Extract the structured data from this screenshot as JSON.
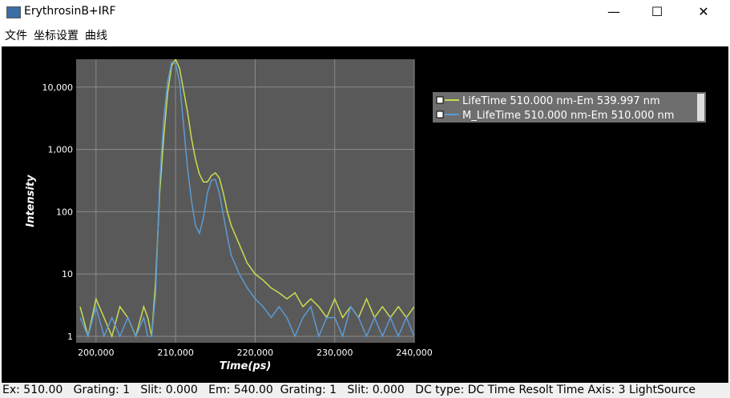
{
  "window": {
    "title": "ErythrosinB+IRF",
    "menu": [
      "文件",
      "坐标设置",
      "曲线"
    ],
    "status": "Ex: 510.00   Grating: 1   Slit: 0.000   Em: 540.00  Grating: 1   Slit: 0.000   DC type: DC Time Resolt Time Axis: 3 LightSource"
  },
  "chart_data": {
    "type": "line",
    "x_label": "Time(ps)",
    "y_label": "Intensity",
    "log_y": true,
    "grid": true,
    "xlim": [
      197500,
      240000
    ],
    "ylim": [
      0.79,
      28000
    ],
    "xticks": [
      {
        "value": 200000,
        "label": "200,000"
      },
      {
        "value": 210000,
        "label": "210,000"
      },
      {
        "value": 220000,
        "label": "220,000"
      },
      {
        "value": 230000,
        "label": "230,000"
      },
      {
        "value": 240000,
        "label": "240,000"
      }
    ],
    "yticks": [
      1,
      10,
      100,
      {
        "value": 1000,
        "label": "1,000"
      },
      {
        "value": 10000,
        "label": "10,000"
      }
    ],
    "x": [
      198000,
      199000,
      200000,
      201000,
      202000,
      203000,
      204000,
      205000,
      206000,
      206500,
      207000,
      207500,
      208000,
      208500,
      209000,
      209500,
      210000,
      210500,
      211000,
      211500,
      212000,
      212500,
      213000,
      213500,
      214000,
      214500,
      215000,
      215500,
      216000,
      216500,
      217000,
      218000,
      219000,
      220000,
      221000,
      222000,
      223000,
      224000,
      225000,
      226000,
      227000,
      228000,
      229000,
      230000,
      231000,
      232000,
      233000,
      234000,
      235000,
      236000,
      237000,
      238000,
      239000,
      240000
    ],
    "series": [
      {
        "name": "LifeTime 510.000 nm-Em 539.997 nm",
        "color": "#c8dc50",
        "values": [
          3,
          1,
          4,
          2,
          1,
          3,
          2,
          1,
          3,
          2,
          1,
          8,
          200,
          1500,
          8000,
          22000,
          28000,
          20000,
          9000,
          4000,
          1500,
          700,
          400,
          300,
          300,
          380,
          420,
          350,
          200,
          100,
          60,
          30,
          15,
          10,
          8,
          6,
          5,
          4,
          5,
          3,
          4,
          3,
          2,
          4,
          2,
          3,
          2,
          4,
          2,
          3,
          2,
          3,
          2,
          3
        ]
      },
      {
        "name": "M_LifeTime 510.000 nm-Em 510.000 nm",
        "color": "#5b9bd5",
        "values": [
          2,
          1,
          3,
          1,
          2,
          1,
          2,
          1,
          2,
          1,
          1,
          5,
          300,
          3000,
          12000,
          25000,
          24000,
          12000,
          2500,
          500,
          150,
          60,
          45,
          80,
          200,
          320,
          330,
          200,
          90,
          40,
          20,
          10,
          6,
          4,
          3,
          2,
          3,
          2,
          1,
          2,
          3,
          1,
          2,
          2,
          1,
          3,
          2,
          1,
          2,
          1,
          2,
          1,
          2,
          1
        ]
      }
    ]
  }
}
